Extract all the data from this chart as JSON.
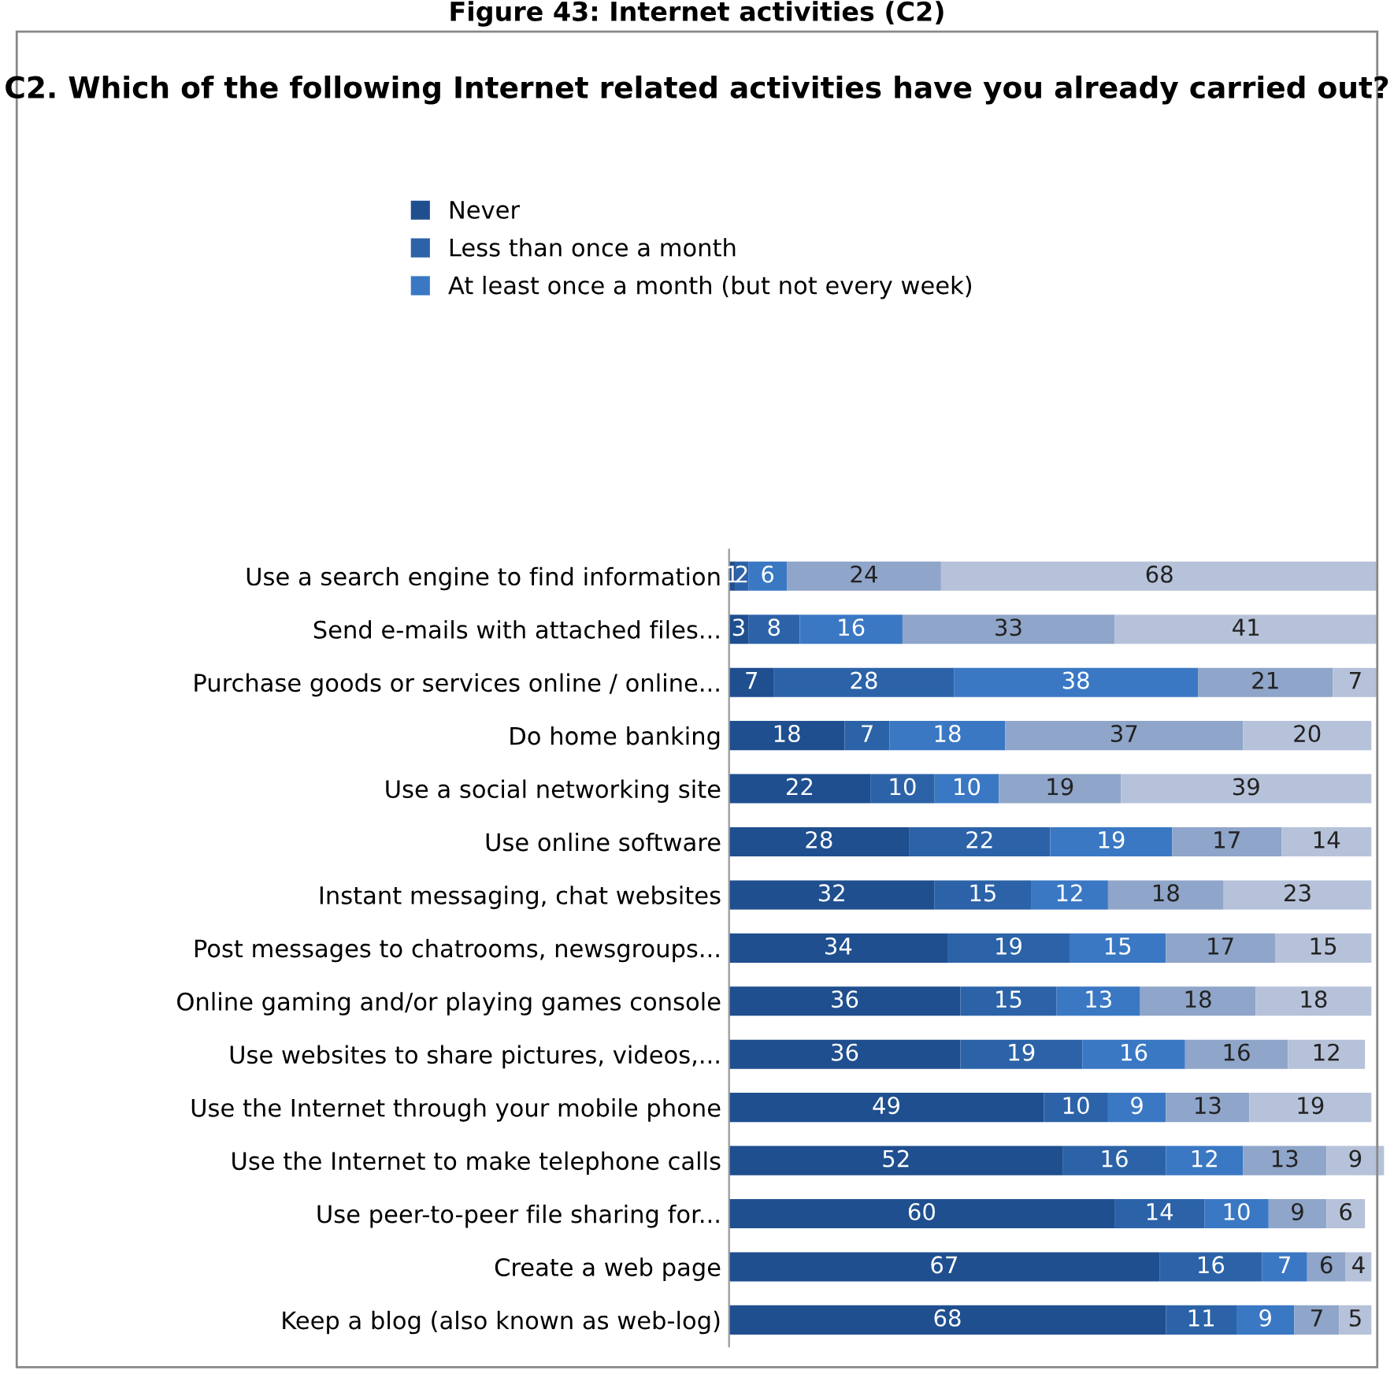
{
  "chart_data": {
    "type": "bar",
    "orientation": "horizontal",
    "stacked": true,
    "data_labels": true,
    "legend": "top",
    "grid": false,
    "tick_labels": "y",
    "title": "C2. Which of the following Internet related activities have you already carried out?",
    "annotations": [
      "Figure 43: Internet activities (C2)"
    ],
    "categories": [
      "Use a search engine to find information",
      "Send e-mails with attached files...",
      "Purchase goods or services online / online...",
      "Do home banking",
      "Use a social networking site",
      "Use online software",
      "Instant messaging, chat websites",
      "Post messages to chatrooms, newsgroups...",
      "Online gaming and/or playing games console",
      "Use websites to share pictures, videos,...",
      "Use the Internet through your mobile phone",
      "Use the Internet to make telephone calls",
      "Use peer-to-peer file sharing for...",
      "Create a web page",
      "Keep a blog (also known as web-log)"
    ],
    "series": [
      {
        "name": "Never",
        "color": "#1f4f8f",
        "values": [
          1,
          3,
          7,
          18,
          22,
          28,
          32,
          34,
          36,
          36,
          49,
          52,
          60,
          67,
          68
        ]
      },
      {
        "name": "Less than once a month",
        "color": "#2c63a8",
        "values": [
          2,
          8,
          28,
          7,
          10,
          22,
          15,
          19,
          15,
          19,
          10,
          16,
          14,
          16,
          11
        ]
      },
      {
        "name": "At least once a month (but not every week)",
        "color": "#3a78c4",
        "values": [
          6,
          16,
          38,
          18,
          10,
          19,
          12,
          15,
          13,
          16,
          9,
          12,
          10,
          7,
          9
        ]
      },
      {
        "color": "#8fa5c9",
        "values": [
          24,
          33,
          21,
          37,
          19,
          17,
          18,
          17,
          18,
          16,
          13,
          13,
          9,
          6,
          7
        ]
      },
      {
        "color": "#b6c2d9",
        "values": [
          68,
          41,
          7,
          20,
          39,
          14,
          23,
          15,
          18,
          12,
          19,
          9,
          6,
          4,
          5
        ]
      }
    ]
  }
}
